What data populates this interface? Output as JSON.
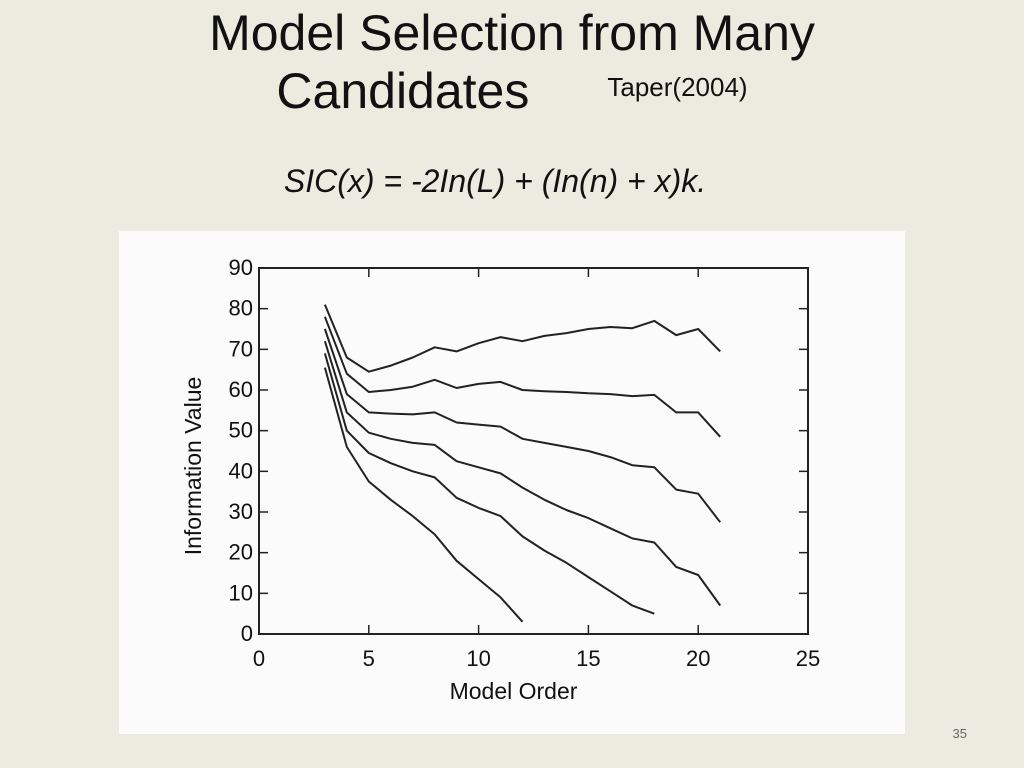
{
  "slide": {
    "title_line1": "Model Selection from Many",
    "title_line2": "Candidates",
    "citation": "Taper(2004)",
    "formula": "SIC(x) = -2In(L) + (In(n) + x)k.",
    "page_number": "35"
  },
  "chart_data": {
    "type": "line",
    "xlabel": "Model Order",
    "ylabel": "Information Value",
    "xlim": [
      0,
      25
    ],
    "ylim": [
      0,
      90
    ],
    "xticks": [
      0,
      5,
      10,
      15,
      20,
      25
    ],
    "yticks": [
      0,
      10,
      20,
      30,
      40,
      50,
      60,
      70,
      80,
      90
    ],
    "grid": false,
    "line_color": "#222222",
    "series": [
      {
        "x": [
          3,
          4,
          5,
          6,
          7,
          8,
          9,
          10,
          11,
          12,
          13,
          14,
          15,
          16,
          17,
          18,
          19,
          20,
          21
        ],
        "values": [
          81,
          68,
          64.5,
          66,
          68,
          70.5,
          69.5,
          71.5,
          73,
          72,
          73.3,
          74,
          75,
          75.5,
          75.2,
          77,
          73.5,
          75,
          69.5
        ]
      },
      {
        "x": [
          3,
          4,
          5,
          6,
          7,
          8,
          9,
          10,
          11,
          12,
          13,
          14,
          15,
          16,
          17,
          18,
          19,
          20,
          21
        ],
        "values": [
          78,
          64,
          59.5,
          60,
          60.8,
          62.5,
          60.5,
          61.5,
          62,
          60,
          59.7,
          59.5,
          59.2,
          59,
          58.5,
          58.8,
          54.5,
          54.5,
          48.5
        ]
      },
      {
        "x": [
          3,
          4,
          5,
          6,
          7,
          8,
          9,
          10,
          11,
          12,
          13,
          14,
          15,
          16,
          17,
          18,
          19,
          20,
          21
        ],
        "values": [
          75,
          59,
          54.5,
          54.2,
          54,
          54.5,
          52,
          51.5,
          51,
          48,
          47,
          46,
          45,
          43.5,
          41.5,
          41,
          35.5,
          34.5,
          27.5
        ]
      },
      {
        "x": [
          3,
          4,
          5,
          6,
          7,
          8,
          9,
          10,
          11,
          12,
          13,
          14,
          15,
          16,
          17,
          18,
          19,
          20,
          21
        ],
        "values": [
          72,
          54.5,
          49.5,
          48,
          47,
          46.5,
          42.5,
          41,
          39.5,
          36,
          33,
          30.5,
          28.5,
          26,
          23.5,
          22.5,
          16.5,
          14.5,
          7
        ]
      },
      {
        "x": [
          3,
          4,
          5,
          6,
          7,
          8,
          9,
          10,
          11,
          12,
          13,
          14,
          15,
          16,
          17,
          18
        ],
        "values": [
          69,
          50,
          44.5,
          42,
          40,
          38.5,
          33.5,
          31,
          29,
          24,
          20.5,
          17.5,
          14,
          10.5,
          7,
          5
        ]
      },
      {
        "x": [
          3,
          4,
          5,
          6,
          7,
          8,
          9,
          10,
          11,
          12
        ],
        "values": [
          65.5,
          46,
          37.5,
          33,
          29,
          24.5,
          18,
          13.5,
          9,
          3
        ]
      }
    ]
  }
}
